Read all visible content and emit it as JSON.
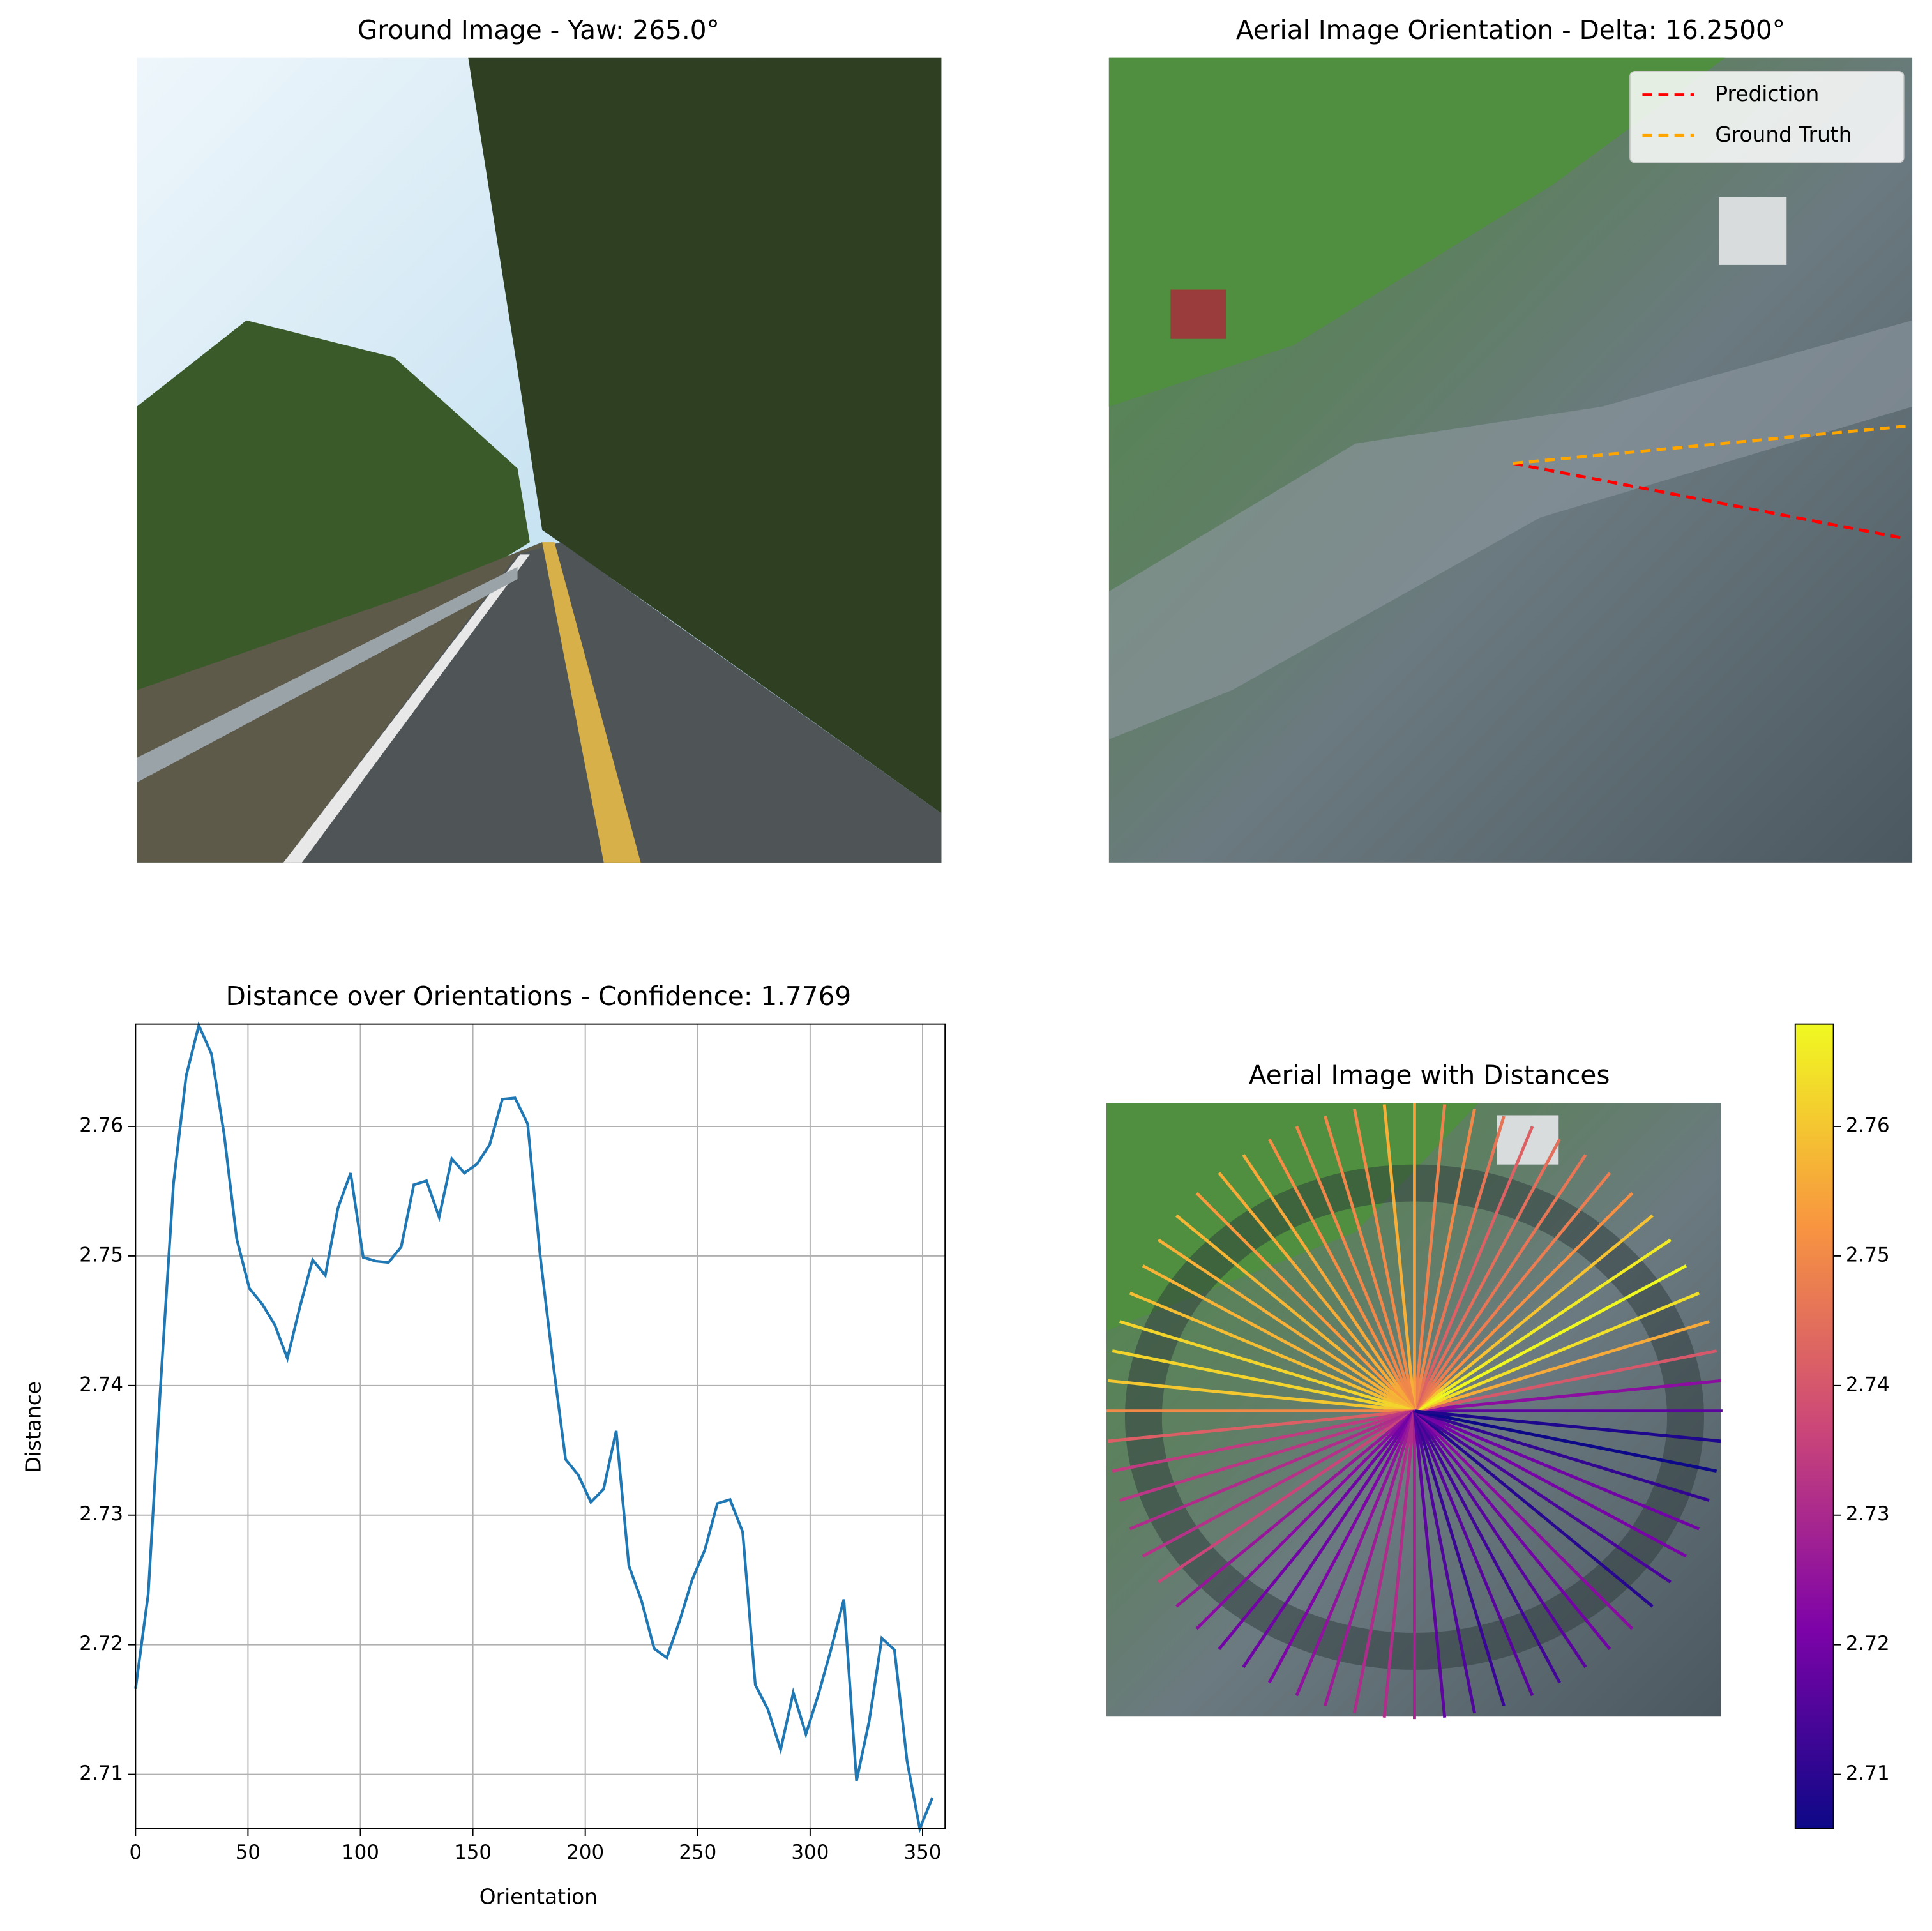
{
  "chart_data": [
    {
      "type": "image",
      "title": "Ground Image - Yaw: 265.0°"
    },
    {
      "type": "orientation",
      "title": "Aerial Image Orientation - Delta: 16.2500°",
      "line_style": "dashed",
      "legend": "upper right",
      "series": [
        {
          "name": "Prediction",
          "color": "#ff0000",
          "angle": -10.85
        },
        {
          "name": "Ground Truth",
          "color": "#ffa500",
          "angle": 5.4
        }
      ]
    },
    {
      "type": "line",
      "title": "Distance over Orientations - Confidence: 1.7769",
      "xlabel": "Orientation",
      "ylabel": "Distance",
      "color": "#1f77b4",
      "grid": true,
      "x": [
        0,
        5.625,
        11.25,
        16.875,
        22.5,
        28.125,
        33.75,
        39.375,
        45,
        50.625,
        56.25,
        61.875,
        67.5,
        73.125,
        78.75,
        84.375,
        90,
        95.625,
        101.25,
        106.875,
        112.5,
        118.125,
        123.75,
        129.375,
        135,
        140.625,
        146.25,
        151.875,
        157.5,
        163.125,
        168.75,
        174.375,
        180,
        185.625,
        191.25,
        196.875,
        202.5,
        208.125,
        213.75,
        219.375,
        225,
        230.625,
        236.25,
        241.875,
        247.5,
        253.125,
        258.75,
        264.375,
        270,
        275.625,
        281.25,
        286.875,
        292.5,
        298.125,
        303.75,
        309.375,
        315,
        320.625,
        326.25,
        331.875,
        337.5,
        343.125,
        348.75,
        354.375
      ],
      "values": [
        2.7166,
        2.7239,
        2.7404,
        2.7556,
        2.7639,
        2.7678,
        2.7656,
        2.7594,
        2.7513,
        2.7475,
        2.7463,
        2.7447,
        2.7421,
        2.7461,
        2.7497,
        2.7485,
        2.7537,
        2.7564,
        2.7499,
        2.7496,
        2.7495,
        2.7507,
        2.7555,
        2.7558,
        2.753,
        2.7575,
        2.7564,
        2.7571,
        2.7586,
        2.7621,
        2.7622,
        2.7602,
        2.7499,
        2.7418,
        2.7343,
        2.7331,
        2.731,
        2.732,
        2.7365,
        2.7261,
        2.7234,
        2.7197,
        2.719,
        2.7218,
        2.725,
        2.7273,
        2.7309,
        2.7312,
        2.7287,
        2.7169,
        2.715,
        2.7119,
        2.7163,
        2.7131,
        2.7162,
        2.7197,
        2.7235,
        2.7095,
        2.7141,
        2.7205,
        2.7196,
        2.711,
        2.7058,
        2.7082
      ],
      "xlim": [
        0,
        360
      ],
      "xticks": [
        0,
        50,
        100,
        150,
        200,
        250,
        300,
        350
      ],
      "ylim": [
        2.7058,
        2.7679
      ],
      "yticks": [
        2.71,
        2.72,
        2.73,
        2.74,
        2.75,
        2.76
      ]
    },
    {
      "type": "radial",
      "title": "Aerial Image with Distances",
      "colormap": "plasma",
      "clim": [
        2.7058,
        2.7679
      ],
      "colorbar_ticks": [
        2.71,
        2.72,
        2.73,
        2.74,
        2.75,
        2.76
      ]
    }
  ]
}
